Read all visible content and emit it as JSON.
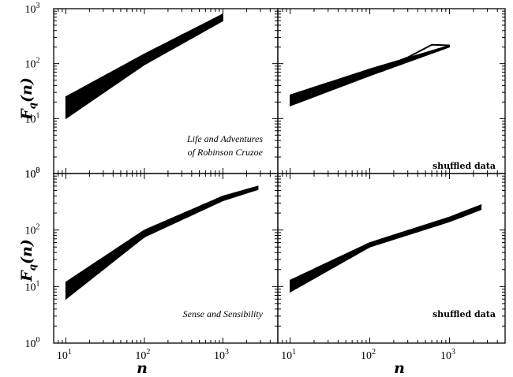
{
  "figure": {
    "ylabel": {
      "main": "F",
      "sub": "q",
      "arg": "(n)"
    },
    "xlabel": "n",
    "annotations": [
      "Life and Adventures",
      "of Robinson Cruzoe",
      "shuffled data",
      "Sense and Sensibility",
      "shuffled data"
    ]
  },
  "chart_data": [
    {
      "type": "line",
      "panel": "top-left",
      "annotation": [
        "Life and Adventures",
        "of Robinson Cruzoe"
      ],
      "xscale": "log",
      "yscale": "log",
      "xlim": [
        7,
        5000
      ],
      "ylim": [
        1,
        1000
      ],
      "xticks": [
        "10^1",
        "10^2",
        "10^3"
      ],
      "yticks": [
        "10^0",
        "10^1",
        "10^2",
        "10^3"
      ],
      "band": {
        "x": [
          10,
          100,
          1000
        ],
        "upper": [
          25,
          150,
          800
        ],
        "lower": [
          10,
          95,
          600
        ]
      },
      "series": [
        {
          "x": [
            10,
            30,
            100,
            300,
            700,
            1000
          ],
          "y": [
            18,
            45,
            120,
            330,
            550,
            800
          ]
        }
      ]
    },
    {
      "type": "line",
      "panel": "top-right",
      "annotation": [
        "shuffled data"
      ],
      "xscale": "log",
      "yscale": "log",
      "xlim": [
        7,
        5000
      ],
      "ylim": [
        1,
        1000
      ],
      "xticks": [
        "10^1",
        "10^2",
        "10^3"
      ],
      "yticks": [
        "10^0",
        "10^1",
        "10^2",
        "10^3"
      ],
      "band": {
        "x": [
          10,
          100,
          1000
        ],
        "upper": [
          27,
          80,
          215
        ],
        "lower": [
          17,
          60,
          200
        ]
      },
      "series": [
        {
          "x": [
            10,
            30,
            100,
            300,
            600,
            1000
          ],
          "y": [
            22,
            40,
            70,
            130,
            220,
            215
          ]
        }
      ]
    },
    {
      "type": "line",
      "panel": "bottom-left",
      "annotation": [
        "Sense and Sensibility"
      ],
      "xscale": "log",
      "yscale": "log",
      "xlim": [
        7,
        5000
      ],
      "ylim": [
        1,
        1000
      ],
      "xticks": [
        "10^1",
        "10^2",
        "10^3"
      ],
      "yticks": [
        "10^0",
        "10^1",
        "10^2",
        "10^3"
      ],
      "band": {
        "x": [
          10,
          100,
          1000,
          2800
        ],
        "upper": [
          12,
          100,
          400,
          600
        ],
        "lower": [
          6,
          75,
          330,
          520
        ]
      },
      "series": [
        {
          "x": [
            10,
            30,
            100,
            300,
            1000,
            2800
          ],
          "y": [
            9,
            28,
            85,
            190,
            360,
            560
          ]
        }
      ]
    },
    {
      "type": "line",
      "panel": "bottom-right",
      "annotation": [
        "shuffled data"
      ],
      "xscale": "log",
      "yscale": "log",
      "xlim": [
        7,
        5000
      ],
      "ylim": [
        1,
        1000
      ],
      "xticks": [
        "10^1",
        "10^2",
        "10^3"
      ],
      "yticks": [
        "10^0",
        "10^1",
        "10^2",
        "10^3"
      ],
      "band": {
        "x": [
          10,
          100,
          1000,
          2500
        ],
        "upper": [
          13,
          60,
          170,
          280
        ],
        "lower": [
          8,
          50,
          140,
          230
        ]
      },
      "series": [
        {
          "x": [
            10,
            30,
            100,
            300,
            1000,
            2500
          ],
          "y": [
            11,
            22,
            55,
            90,
            150,
            250
          ]
        }
      ]
    }
  ]
}
